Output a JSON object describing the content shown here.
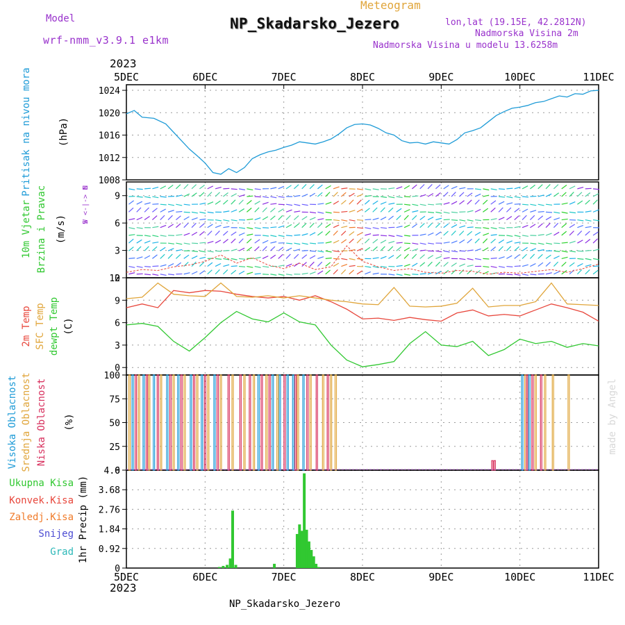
{
  "header": {
    "model_label": "Model",
    "model_name": "wrf-nmm_v3.9.1 e1km",
    "meteogram_label": "Meteogram",
    "station_title": "NP_Skadarsko_Jezero",
    "lonlat": "lon,lat (19.15E, 42.2812N)",
    "elevation": "Nadmorska Visina 2m",
    "model_elevation": "Nadmorska Visina u modelu 13.6258m",
    "year_top": "2023",
    "year_bottom": "2023",
    "footer_station": "NP_Skadarsko_Jezero",
    "watermark": "made by Angel"
  },
  "colors": {
    "pressure": "#1e9bd7",
    "temp2m": "#e8473c",
    "sfc_temp": "#e0a53a",
    "dewpt": "#31c831",
    "high_cloud": "#1e9bd7",
    "mid_cloud": "#e0a53a",
    "low_cloud": "#d8315e",
    "total_precip": "#31c831",
    "conv_precip": "#e8473c",
    "frozen_precip": "#f07b2a",
    "snow": "#4b4bd2",
    "graupel": "#2cb8b8",
    "wind_purple": "#8a2be2",
    "wind_cyan": "#1ec8c8",
    "axis_label_purple": "#9932cc"
  },
  "chart_data": [
    {
      "type": "line",
      "panel": "pressure",
      "ylabel_title": "Pritisak na nivou mora",
      "ylabel_unit": "(hPa)",
      "x_ticks": [
        "5DEC",
        "6DEC",
        "7DEC",
        "8DEC",
        "9DEC",
        "10DEC",
        "11DEC"
      ],
      "ylim": [
        1008,
        1025
      ],
      "yticks": [
        1008,
        1012,
        1016,
        1020,
        1024
      ],
      "grid": true,
      "series": [
        {
          "x": [
            0,
            0.1,
            0.2,
            0.35,
            0.5,
            0.6,
            0.7,
            0.8,
            0.9,
            1.0,
            1.1,
            1.2,
            1.3,
            1.4,
            1.5,
            1.6,
            1.7,
            1.8,
            1.9,
            2.0,
            2.1,
            2.2,
            2.3,
            2.4,
            2.5,
            2.6,
            2.7,
            2.8,
            2.9,
            3.0,
            3.1,
            3.2,
            3.3,
            3.4,
            3.5,
            3.6,
            3.7,
            3.8,
            3.9,
            4.0,
            4.1,
            4.2,
            4.3,
            4.4,
            4.5,
            4.6,
            4.7,
            4.8,
            4.9,
            5.0,
            5.1,
            5.2,
            5.3,
            5.4,
            5.5,
            5.6,
            5.7,
            5.8,
            5.9,
            6.0
          ],
          "values": [
            1019.8,
            1020.4,
            1019.2,
            1019.0,
            1018.0,
            1016.5,
            1015.0,
            1013.5,
            1012.3,
            1011.0,
            1009.3,
            1009.0,
            1010.0,
            1009.3,
            1010.2,
            1011.8,
            1012.5,
            1013.0,
            1013.3,
            1013.8,
            1014.2,
            1014.8,
            1014.6,
            1014.4,
            1014.8,
            1015.3,
            1016.2,
            1017.3,
            1017.9,
            1018.0,
            1017.8,
            1017.2,
            1016.4,
            1016.0,
            1015.0,
            1014.6,
            1014.7,
            1014.4,
            1014.8,
            1014.6,
            1014.4,
            1015.2,
            1016.4,
            1016.8,
            1017.3,
            1018.4,
            1019.5,
            1020.2,
            1020.8,
            1021.0,
            1021.3,
            1021.8,
            1022.0,
            1022.5,
            1023.0,
            1022.8,
            1023.4,
            1023.3,
            1023.9,
            1024.0
          ]
        }
      ]
    },
    {
      "type": "line",
      "panel": "wind",
      "ylabel_title_1": "10m Vjetar",
      "ylabel_title_2": "Brzina i Pravac",
      "ylabel_unit": "(m/s)",
      "compass_label": "W  <-|->  E",
      "compass_n": "N",
      "compass_s": "S",
      "ylim": [
        0,
        10.5
      ],
      "yticks": [
        0,
        3,
        6,
        9
      ],
      "grid": true,
      "series": [
        {
          "name": "wind speed",
          "x": [
            0.0,
            0.2,
            0.4,
            0.6,
            0.8,
            1.0,
            1.2,
            1.4,
            1.6,
            1.8,
            2.0,
            2.2,
            2.4,
            2.6,
            2.8,
            3.0,
            3.2,
            3.4,
            3.6,
            3.8,
            4.0,
            4.2,
            4.4,
            4.6,
            4.8,
            5.0,
            5.2,
            5.4,
            5.6,
            5.8,
            6.0
          ],
          "values": [
            0.6,
            0.9,
            0.8,
            1.2,
            1.4,
            1.8,
            2.5,
            1.6,
            2.2,
            1.4,
            1.0,
            1.6,
            0.9,
            1.2,
            3.5,
            1.8,
            1.2,
            0.8,
            1.0,
            0.6,
            0.5,
            0.8,
            0.7,
            0.4,
            0.6,
            0.5,
            0.7,
            0.9,
            0.6,
            1.0,
            1.5
          ]
        }
      ]
    },
    {
      "type": "line",
      "panel": "temperature",
      "ylabel_1": "2m Temp",
      "ylabel_2": "SFC Temp",
      "ylabel_3": "dewpt Temp",
      "ylabel_unit": "(C)",
      "ylim": [
        -1,
        12
      ],
      "yticks": [
        0,
        3,
        6,
        9,
        12
      ],
      "grid": true,
      "series": [
        {
          "name": "2m Temp",
          "x": [
            0,
            0.2,
            0.4,
            0.6,
            0.8,
            1.0,
            1.2,
            1.4,
            1.6,
            1.8,
            2.0,
            2.2,
            2.4,
            2.6,
            2.8,
            3.0,
            3.2,
            3.4,
            3.6,
            3.8,
            4.0,
            4.2,
            4.4,
            4.6,
            4.8,
            5.0,
            5.2,
            5.4,
            5.6,
            5.8,
            6.0
          ],
          "values": [
            8.0,
            8.5,
            8.0,
            10.3,
            10.0,
            10.3,
            10.2,
            9.8,
            9.5,
            9.3,
            9.5,
            9.0,
            9.6,
            8.8,
            7.8,
            6.5,
            6.6,
            6.3,
            6.7,
            6.4,
            6.2,
            7.3,
            7.7,
            6.9,
            7.1,
            6.9,
            7.7,
            8.5,
            8.0,
            7.4,
            6.2
          ]
        },
        {
          "name": "SFC Temp",
          "x": [
            0,
            0.2,
            0.4,
            0.6,
            0.8,
            1.0,
            1.2,
            1.4,
            1.6,
            1.8,
            2.0,
            2.2,
            2.4,
            2.6,
            2.8,
            3.0,
            3.2,
            3.4,
            3.6,
            3.8,
            4.0,
            4.2,
            4.4,
            4.6,
            4.8,
            5.0,
            5.2,
            5.4,
            5.6,
            5.8,
            6.0
          ],
          "values": [
            9.2,
            9.4,
            11.3,
            9.8,
            9.6,
            9.5,
            11.3,
            9.5,
            9.4,
            9.6,
            9.3,
            9.6,
            9.3,
            9.0,
            8.8,
            8.5,
            8.4,
            10.7,
            8.2,
            8.1,
            8.2,
            8.6,
            10.6,
            8.1,
            8.3,
            8.3,
            8.8,
            11.3,
            8.5,
            8.4,
            8.3
          ]
        },
        {
          "name": "dewpt Temp",
          "x": [
            0,
            0.2,
            0.4,
            0.6,
            0.8,
            1.0,
            1.2,
            1.4,
            1.6,
            1.8,
            2.0,
            2.2,
            2.4,
            2.6,
            2.8,
            3.0,
            3.2,
            3.4,
            3.6,
            3.8,
            4.0,
            4.2,
            4.4,
            4.6,
            4.8,
            5.0,
            5.2,
            5.4,
            5.6,
            5.8,
            6.0
          ],
          "values": [
            5.7,
            5.9,
            5.5,
            3.5,
            2.2,
            4.0,
            6.0,
            7.5,
            6.5,
            6.1,
            7.3,
            6.1,
            5.7,
            3.0,
            1.0,
            0.1,
            0.4,
            0.8,
            3.2,
            4.8,
            3.0,
            2.8,
            3.5,
            1.6,
            2.4,
            3.8,
            3.2,
            3.5,
            2.7,
            3.2,
            2.9
          ]
        }
      ]
    },
    {
      "type": "bar",
      "panel": "cloud",
      "ylabel_1": "Visoka Oblacnost",
      "ylabel_2": "Srednja Oblacnost",
      "ylabel_3": "Niska Oblacnost",
      "ylabel_unit": "(%)",
      "ylim": [
        0,
        100
      ],
      "yticks": [
        0,
        25,
        50,
        75,
        100
      ],
      "grid": true,
      "series": [
        {
          "name": "Visoka Oblacnost",
          "x": [
            0.08,
            0.22,
            0.35,
            0.52,
            0.66,
            0.82,
            0.96,
            1.12,
            1.68,
            1.86,
            1.95,
            2.05,
            2.12,
            2.25,
            5.03,
            5.12
          ],
          "values": [
            100,
            100,
            100,
            100,
            100,
            100,
            100,
            100,
            100,
            100,
            100,
            100,
            100,
            100,
            100,
            100
          ]
        },
        {
          "name": "Srednja Oblacnost",
          "x": [
            0.04,
            0.16,
            0.29,
            0.44,
            0.6,
            0.74,
            0.9,
            1.04,
            1.2,
            1.35,
            1.5,
            1.62,
            1.78,
            1.92,
            2.18,
            2.34,
            2.5,
            2.6,
            2.66,
            5.07,
            5.2,
            5.32,
            5.42,
            5.62
          ],
          "values": [
            100,
            100,
            100,
            100,
            100,
            100,
            100,
            100,
            100,
            100,
            100,
            100,
            100,
            100,
            100,
            100,
            100,
            100,
            100,
            100,
            100,
            100,
            100,
            100
          ]
        },
        {
          "name": "Niska Oblacnost",
          "x": [
            0.12,
            0.26,
            0.4,
            0.56,
            0.7,
            0.86,
            1.0,
            1.16,
            1.3,
            1.45,
            1.57,
            1.72,
            1.82,
            2.01,
            2.15,
            2.3,
            2.42,
            2.56,
            4.65,
            4.68,
            5.09,
            5.16,
            5.27
          ],
          "values": [
            100,
            100,
            100,
            100,
            100,
            100,
            100,
            100,
            100,
            100,
            100,
            100,
            100,
            100,
            100,
            100,
            100,
            100,
            10,
            10,
            100,
            100,
            100
          ]
        }
      ]
    },
    {
      "type": "bar",
      "panel": "precipitation",
      "ylabel_unit": "1hr Precip (mm)",
      "legend": [
        "Ukupna Kisa",
        "Konvek.Kisa",
        "Zaledj.Kisa",
        "Snijeg",
        "Grad"
      ],
      "ylim": [
        0,
        4.6
      ],
      "yticks": [
        0,
        0.92,
        1.84,
        2.76,
        3.68,
        4.6
      ],
      "grid": true,
      "x_ticks": [
        "5DEC",
        "6DEC",
        "7DEC",
        "8DEC",
        "9DEC",
        "10DEC",
        "11DEC"
      ],
      "series": [
        {
          "name": "Ukupna Kisa",
          "x": [
            1.18,
            1.23,
            1.28,
            1.32,
            1.35,
            1.39,
            1.88,
            2.17,
            2.2,
            2.23,
            2.26,
            2.29,
            2.32,
            2.35,
            2.38,
            2.41,
            2.44
          ],
          "values": [
            0.05,
            0.1,
            0.15,
            0.45,
            2.7,
            0.15,
            0.2,
            1.6,
            2.05,
            1.75,
            4.45,
            1.8,
            1.25,
            0.85,
            0.55,
            0.2,
            0.05
          ]
        }
      ]
    }
  ]
}
